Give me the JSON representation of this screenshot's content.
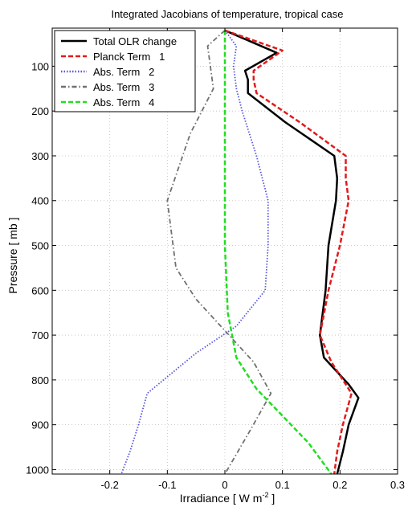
{
  "chart_data": {
    "type": "line",
    "title": "Integrated Jacobians of temperature, tropical case",
    "xlabel": "Irradiance [ W m",
    "xlabel_sup": "-2",
    "xlabel_end": " ]",
    "ylabel": "Pressure [ mb ]",
    "xlim": [
      -0.3,
      0.3
    ],
    "ylim": [
      1010,
      15
    ],
    "y_reversed": true,
    "grid": true,
    "xticks": [
      -0.2,
      -0.1,
      0,
      0.1,
      0.2,
      0.3
    ],
    "xtick_labels": [
      "-0.2",
      "-0.1",
      "0",
      "0.1",
      "0.2",
      "0.3"
    ],
    "yticks": [
      100,
      200,
      300,
      400,
      500,
      600,
      700,
      800,
      900,
      1000
    ],
    "ytick_labels": [
      "100",
      "200",
      "300",
      "400",
      "500",
      "600",
      "700",
      "800",
      "900",
      "1000"
    ],
    "legend_position": "top-left",
    "series": [
      {
        "name": "Total OLR change",
        "color": "#000000",
        "dash": "solid",
        "points": [
          [
            0,
            20
          ],
          [
            0.09,
            70
          ],
          [
            0.035,
            110
          ],
          [
            0.04,
            130
          ],
          [
            0.04,
            160
          ],
          [
            0.105,
            225
          ],
          [
            0.19,
            300
          ],
          [
            0.195,
            350
          ],
          [
            0.193,
            400
          ],
          [
            0.18,
            500
          ],
          [
            0.175,
            600
          ],
          [
            0.165,
            700
          ],
          [
            0.172,
            750
          ],
          [
            0.215,
            810
          ],
          [
            0.232,
            840
          ],
          [
            0.215,
            900
          ],
          [
            0.205,
            960
          ],
          [
            0.195,
            1010
          ]
        ]
      },
      {
        "name": "Planck Term   1",
        "color": "#e31a1c",
        "dash": "dashed",
        "points": [
          [
            0,
            20
          ],
          [
            0.1,
            65
          ],
          [
            0.05,
            110
          ],
          [
            0.05,
            130
          ],
          [
            0.055,
            160
          ],
          [
            0.13,
            225
          ],
          [
            0.21,
            300
          ],
          [
            0.21,
            350
          ],
          [
            0.215,
            400
          ],
          [
            0.2,
            500
          ],
          [
            0.18,
            600
          ],
          [
            0.165,
            700
          ],
          [
            0.185,
            760
          ],
          [
            0.22,
            830
          ],
          [
            0.205,
            900
          ],
          [
            0.195,
            960
          ],
          [
            0.19,
            1010
          ]
        ]
      },
      {
        "name": "Abs. Term   2",
        "color": "#5555dd",
        "dash": "dotted",
        "points": [
          [
            0,
            20
          ],
          [
            0.02,
            55
          ],
          [
            0.015,
            100
          ],
          [
            0.02,
            150
          ],
          [
            0.03,
            200
          ],
          [
            0.055,
            300
          ],
          [
            0.075,
            400
          ],
          [
            0.075,
            500
          ],
          [
            0.07,
            600
          ],
          [
            0.02,
            680
          ],
          [
            -0.05,
            740
          ],
          [
            -0.135,
            830
          ],
          [
            -0.15,
            900
          ],
          [
            -0.165,
            960
          ],
          [
            -0.18,
            1010
          ]
        ]
      },
      {
        "name": "Abs. Term   3",
        "color": "#707070",
        "dash": "dashdot",
        "points": [
          [
            0,
            20
          ],
          [
            -0.03,
            55
          ],
          [
            -0.02,
            150
          ],
          [
            -0.06,
            250
          ],
          [
            -0.1,
            400
          ],
          [
            -0.085,
            550
          ],
          [
            -0.05,
            620
          ],
          [
            0,
            690
          ],
          [
            0.05,
            760
          ],
          [
            0.08,
            830
          ],
          [
            0.045,
            910
          ],
          [
            0,
            1010
          ]
        ]
      },
      {
        "name": "Abs. Term   4",
        "color": "#22dd22",
        "dash": "dashed",
        "points": [
          [
            0,
            20
          ],
          [
            0,
            200
          ],
          [
            0,
            500
          ],
          [
            0.005,
            650
          ],
          [
            0.02,
            750
          ],
          [
            0.055,
            820
          ],
          [
            0.1,
            880
          ],
          [
            0.145,
            940
          ],
          [
            0.185,
            1010
          ]
        ]
      }
    ]
  }
}
